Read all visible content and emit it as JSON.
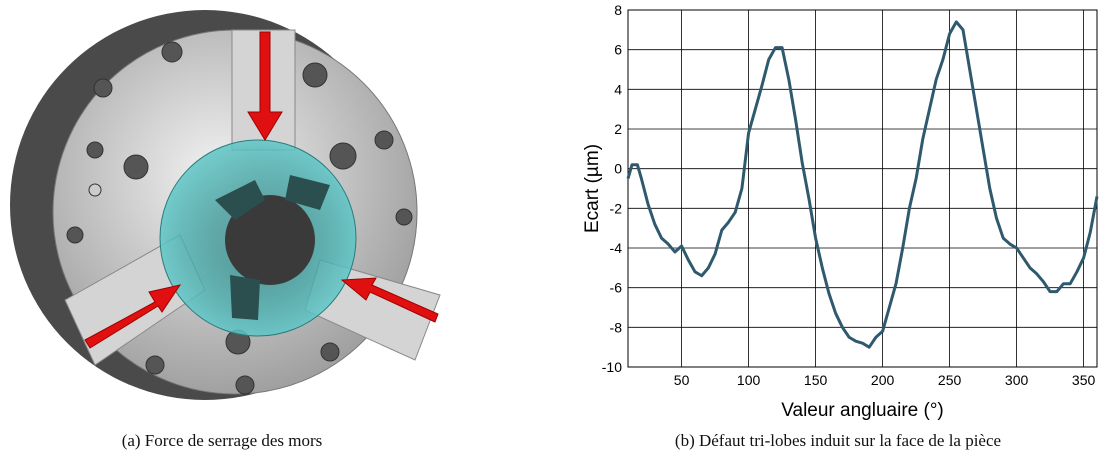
{
  "caption_a": "(a) Force de serrage des mors",
  "chart_data": {
    "type": "line",
    "caption": "(b) Défaut tri-lobes induit sur la face de la pièce",
    "xlabel": "Valeur angluaire (°)",
    "ylabel": "Ecart (µm)",
    "x": [
      10,
      13,
      17,
      20,
      25,
      30,
      35,
      40,
      45,
      50,
      55,
      60,
      65,
      70,
      75,
      80,
      85,
      90,
      95,
      100,
      105,
      110,
      115,
      120,
      125,
      130,
      135,
      140,
      145,
      150,
      155,
      160,
      165,
      170,
      175,
      180,
      185,
      190,
      195,
      200,
      205,
      210,
      215,
      220,
      225,
      230,
      235,
      240,
      245,
      250,
      255,
      260,
      265,
      270,
      275,
      280,
      285,
      290,
      295,
      300,
      305,
      310,
      315,
      320,
      325,
      330,
      335,
      340,
      345,
      350,
      355,
      360
    ],
    "series": [
      {
        "color": "#2f5a6e",
        "values": [
          -0.5,
          0.2,
          0.2,
          -0.5,
          -1.8,
          -2.8,
          -3.5,
          -3.8,
          -4.2,
          -3.9,
          -4.6,
          -5.2,
          -5.4,
          -5.0,
          -4.3,
          -3.1,
          -2.7,
          -2.2,
          -1.0,
          1.8,
          3.0,
          4.2,
          5.5,
          6.1,
          6.1,
          4.5,
          2.5,
          0.3,
          -1.5,
          -3.5,
          -5.0,
          -6.3,
          -7.3,
          -8.0,
          -8.5,
          -8.7,
          -8.8,
          -9.0,
          -8.5,
          -8.2,
          -7.0,
          -5.8,
          -4.0,
          -2.0,
          -0.5,
          1.5,
          3.0,
          4.5,
          5.5,
          6.8,
          7.4,
          7.0,
          5.0,
          3.0,
          1.0,
          -1.0,
          -2.5,
          -3.5,
          -3.8,
          -4.0,
          -4.5,
          -5.0,
          -5.3,
          -5.7,
          -6.2,
          -6.2,
          -5.8,
          -5.8,
          -5.2,
          -4.5,
          -3.2,
          -1.4
        ]
      }
    ],
    "xlim": [
      10,
      360
    ],
    "xticks": [
      50,
      100,
      150,
      200,
      250,
      300,
      350
    ],
    "ylim": [
      -10,
      8
    ],
    "yticks": [
      -10,
      -8,
      -6,
      -4,
      -2,
      0,
      2,
      4,
      6,
      8
    ],
    "grid": true
  }
}
